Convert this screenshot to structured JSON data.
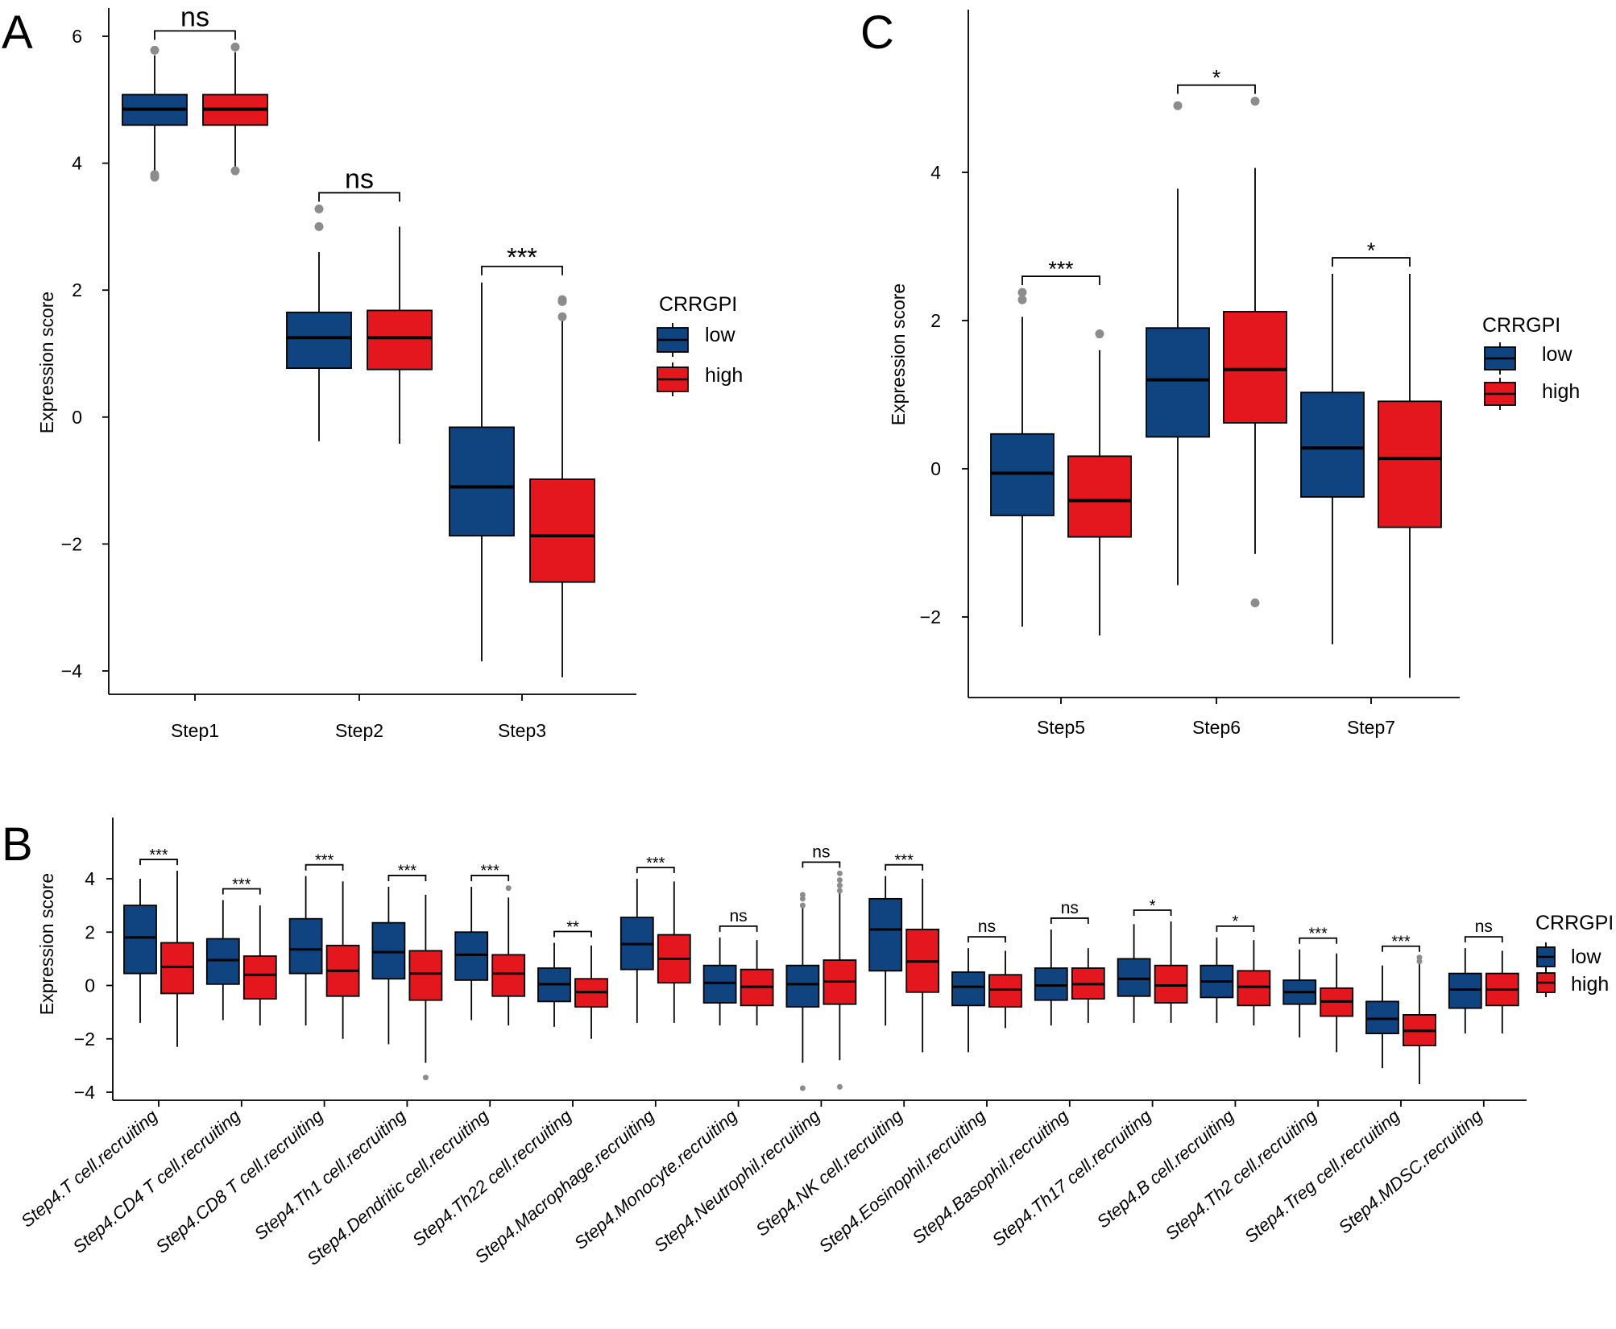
{
  "colors": {
    "low": "#0f4480",
    "high": "#e3171d",
    "outlier": "#8c8c8c"
  },
  "legend_title": "CRRGPI",
  "legend_labels": [
    "low",
    "high"
  ],
  "y_title": "Expression score",
  "chart_data": [
    {
      "panel": "A",
      "type": "boxplot",
      "ylabel": "Expression score",
      "yticks": [
        "6",
        "4",
        "2",
        "0",
        "−2",
        "−4"
      ],
      "ytick_values": [
        6,
        4,
        2,
        0,
        -2,
        -4
      ],
      "ylim": [
        -4.6,
        6.6
      ],
      "legend": {
        "title": "CRRGPI",
        "labels": [
          "low",
          "high"
        ]
      },
      "categories": [
        "Step1",
        "Step2",
        "Step3"
      ],
      "groups": [
        {
          "low": {
            "whisker_low": 3.85,
            "q1": 4.6,
            "median": 4.85,
            "q3": 5.08,
            "whisker_high": 5.7,
            "outliers": [
              5.78,
              3.82,
              3.78
            ]
          },
          "high": {
            "whisker_low": 3.95,
            "q1": 4.6,
            "median": 4.85,
            "q3": 5.08,
            "whisker_high": 5.75,
            "outliers": [
              5.83,
              3.88
            ]
          },
          "sig": "ns"
        },
        {
          "low": {
            "whisker_low": -0.38,
            "q1": 0.77,
            "median": 1.25,
            "q3": 1.65,
            "whisker_high": 2.6,
            "outliers": [
              3.28,
              3.0
            ]
          },
          "high": {
            "whisker_low": -0.42,
            "q1": 0.75,
            "median": 1.25,
            "q3": 1.68,
            "whisker_high": 3.0,
            "outliers": []
          },
          "sig": "ns"
        },
        {
          "low": {
            "whisker_low": -3.85,
            "q1": -1.87,
            "median": -1.1,
            "q3": -0.16,
            "whisker_high": 2.12,
            "outliers": []
          },
          "high": {
            "whisker_low": -4.1,
            "q1": -2.6,
            "median": -1.87,
            "q3": -0.98,
            "whisker_high": 1.55,
            "outliers": [
              1.85,
              1.82,
              1.58
            ]
          },
          "sig": "***"
        }
      ]
    },
    {
      "panel": "C",
      "type": "boxplot",
      "ylabel": "Expression score",
      "yticks": [
        "4",
        "2",
        "0",
        "−2"
      ],
      "ytick_values": [
        4,
        2,
        0,
        -2
      ],
      "ylim": [
        -3.1,
        5.9
      ],
      "legend": {
        "title": "CRRGPI",
        "labels": [
          "low",
          "high"
        ]
      },
      "categories": [
        "Step5",
        "Step6",
        "Step7"
      ],
      "groups": [
        {
          "low": {
            "whisker_low": -2.13,
            "q1": -0.63,
            "median": -0.06,
            "q3": 0.47,
            "whisker_high": 2.05,
            "outliers": [
              2.38,
              2.28
            ]
          },
          "high": {
            "whisker_low": -2.25,
            "q1": -0.92,
            "median": -0.43,
            "q3": 0.17,
            "whisker_high": 1.6,
            "outliers": [
              1.82
            ]
          },
          "sig": "***"
        },
        {
          "low": {
            "whisker_low": -1.57,
            "q1": 0.43,
            "median": 1.2,
            "q3": 1.9,
            "whisker_high": 3.78,
            "outliers": [
              4.9
            ]
          },
          "high": {
            "whisker_low": -1.15,
            "q1": 0.62,
            "median": 1.34,
            "q3": 2.12,
            "whisker_high": 4.06,
            "outliers": [
              4.96,
              -1.81
            ]
          },
          "sig": "*"
        },
        {
          "low": {
            "whisker_low": -2.37,
            "q1": -0.38,
            "median": 0.28,
            "q3": 1.03,
            "whisker_high": 2.63,
            "outliers": []
          },
          "high": {
            "whisker_low": -2.82,
            "q1": -0.79,
            "median": 0.14,
            "q3": 0.91,
            "whisker_high": 2.63,
            "outliers": []
          },
          "sig": "*"
        }
      ]
    },
    {
      "panel": "B",
      "type": "boxplot",
      "ylabel": "Expression score",
      "yticks": [
        "4",
        "2",
        "0",
        "−2",
        "−4"
      ],
      "ytick_values": [
        4,
        2,
        0,
        -2,
        -4
      ],
      "ylim": [
        -4.3,
        5.7
      ],
      "legend": {
        "title": "CRRGPI",
        "labels": [
          "low",
          "high"
        ]
      },
      "categories": [
        "Step4.T cell.recruiting",
        "Step4.CD4 T cell.recruiting",
        "Step4.CD8 T cell.recruiting",
        "Step4.Th1 cell.recruiting",
        "Step4.Dendritic cell.recruiting",
        "Step4.Th22 cell.recruiting",
        "Step4.Macrophage.recruiting",
        "Step4.Monocyte.recruiting",
        "Step4.Neutrophil.recruiting",
        "Step4.NK cell.recruiting",
        "Step4.Eosinophil.recruiting",
        "Step4.Basophil.recruiting",
        "Step4.Th17 cell.recruiting",
        "Step4.B cell.recruiting",
        "Step4.Th2 cell.recruiting",
        "Step4.Treg cell.recruiting",
        "Step4.MDSC.recruiting"
      ],
      "groups": [
        {
          "low": {
            "whisker_low": -1.4,
            "q1": 0.45,
            "median": 1.8,
            "q3": 3.0,
            "whisker_high": 4.0,
            "outliers": []
          },
          "high": {
            "whisker_low": -2.3,
            "q1": -0.3,
            "median": 0.7,
            "q3": 1.6,
            "whisker_high": 4.3,
            "outliers": []
          },
          "sig": "***"
        },
        {
          "low": {
            "whisker_low": -1.3,
            "q1": 0.05,
            "median": 0.95,
            "q3": 1.75,
            "whisker_high": 3.2,
            "outliers": []
          },
          "high": {
            "whisker_low": -1.5,
            "q1": -0.5,
            "median": 0.4,
            "q3": 1.1,
            "whisker_high": 3.0,
            "outliers": []
          },
          "sig": "***"
        },
        {
          "low": {
            "whisker_low": -1.5,
            "q1": 0.45,
            "median": 1.35,
            "q3": 2.5,
            "whisker_high": 4.1,
            "outliers": []
          },
          "high": {
            "whisker_low": -2.0,
            "q1": -0.4,
            "median": 0.55,
            "q3": 1.5,
            "whisker_high": 3.9,
            "outliers": []
          },
          "sig": "***"
        },
        {
          "low": {
            "whisker_low": -2.2,
            "q1": 0.25,
            "median": 1.25,
            "q3": 2.35,
            "whisker_high": 3.7,
            "outliers": []
          },
          "high": {
            "whisker_low": -2.9,
            "q1": -0.55,
            "median": 0.45,
            "q3": 1.3,
            "whisker_high": 3.4,
            "outliers": [
              -3.45
            ]
          },
          "sig": "***"
        },
        {
          "low": {
            "whisker_low": -1.3,
            "q1": 0.2,
            "median": 1.15,
            "q3": 2.0,
            "whisker_high": 3.7,
            "outliers": []
          },
          "high": {
            "whisker_low": -1.5,
            "q1": -0.4,
            "median": 0.45,
            "q3": 1.15,
            "whisker_high": 3.3,
            "outliers": [
              3.65
            ]
          },
          "sig": "***"
        },
        {
          "low": {
            "whisker_low": -1.55,
            "q1": -0.6,
            "median": 0.05,
            "q3": 0.65,
            "whisker_high": 1.6,
            "outliers": []
          },
          "high": {
            "whisker_low": -2.0,
            "q1": -0.8,
            "median": -0.25,
            "q3": 0.25,
            "whisker_high": 1.5,
            "outliers": []
          },
          "sig": "**"
        },
        {
          "low": {
            "whisker_low": -1.4,
            "q1": 0.6,
            "median": 1.55,
            "q3": 2.55,
            "whisker_high": 4.0,
            "outliers": []
          },
          "high": {
            "whisker_low": -1.4,
            "q1": 0.1,
            "median": 1.0,
            "q3": 1.9,
            "whisker_high": 3.9,
            "outliers": []
          },
          "sig": "***"
        },
        {
          "low": {
            "whisker_low": -1.5,
            "q1": -0.65,
            "median": 0.1,
            "q3": 0.75,
            "whisker_high": 1.8,
            "outliers": []
          },
          "high": {
            "whisker_low": -1.5,
            "q1": -0.75,
            "median": -0.05,
            "q3": 0.6,
            "whisker_high": 1.7,
            "outliers": []
          },
          "sig": "ns"
        },
        {
          "low": {
            "whisker_low": -2.9,
            "q1": -0.8,
            "median": 0.05,
            "q3": 0.75,
            "whisker_high": 3.0,
            "outliers": [
              3.4,
              3.25,
              3.0,
              -3.85
            ]
          },
          "high": {
            "whisker_low": -2.8,
            "q1": -0.7,
            "median": 0.15,
            "q3": 0.95,
            "whisker_high": 3.5,
            "outliers": [
              4.2,
              3.95,
              3.75,
              3.55,
              -3.8
            ]
          },
          "sig": "ns"
        },
        {
          "low": {
            "whisker_low": -1.5,
            "q1": 0.55,
            "median": 2.1,
            "q3": 3.25,
            "whisker_high": 4.1,
            "outliers": []
          },
          "high": {
            "whisker_low": -2.5,
            "q1": -0.25,
            "median": 0.9,
            "q3": 2.1,
            "whisker_high": 4.0,
            "outliers": []
          },
          "sig": "***"
        },
        {
          "low": {
            "whisker_low": -2.5,
            "q1": -0.75,
            "median": -0.05,
            "q3": 0.5,
            "whisker_high": 1.4,
            "outliers": []
          },
          "high": {
            "whisker_low": -1.6,
            "q1": -0.8,
            "median": -0.15,
            "q3": 0.4,
            "whisker_high": 1.3,
            "outliers": []
          },
          "sig": "ns"
        },
        {
          "low": {
            "whisker_low": -1.5,
            "q1": -0.55,
            "median": 0.0,
            "q3": 0.65,
            "whisker_high": 2.1,
            "outliers": []
          },
          "high": {
            "whisker_low": -1.4,
            "q1": -0.5,
            "median": 0.05,
            "q3": 0.65,
            "whisker_high": 1.4,
            "outliers": []
          },
          "sig": "ns"
        },
        {
          "low": {
            "whisker_low": -1.4,
            "q1": -0.4,
            "median": 0.25,
            "q3": 1.0,
            "whisker_high": 2.3,
            "outliers": []
          },
          "high": {
            "whisker_low": -1.4,
            "q1": -0.65,
            "median": 0.0,
            "q3": 0.75,
            "whisker_high": 2.4,
            "outliers": []
          },
          "sig": "*"
        },
        {
          "low": {
            "whisker_low": -1.4,
            "q1": -0.45,
            "median": 0.15,
            "q3": 0.75,
            "whisker_high": 1.8,
            "outliers": []
          },
          "high": {
            "whisker_low": -1.5,
            "q1": -0.75,
            "median": -0.05,
            "q3": 0.55,
            "whisker_high": 1.7,
            "outliers": []
          },
          "sig": "*"
        },
        {
          "low": {
            "whisker_low": -1.95,
            "q1": -0.7,
            "median": -0.25,
            "q3": 0.2,
            "whisker_high": 1.35,
            "outliers": []
          },
          "high": {
            "whisker_low": -2.5,
            "q1": -1.15,
            "median": -0.6,
            "q3": -0.1,
            "whisker_high": 1.2,
            "outliers": []
          },
          "sig": "***"
        },
        {
          "low": {
            "whisker_low": -3.1,
            "q1": -1.8,
            "median": -1.25,
            "q3": -0.6,
            "whisker_high": 0.75,
            "outliers": []
          },
          "high": {
            "whisker_low": -3.7,
            "q1": -2.25,
            "median": -1.7,
            "q3": -1.1,
            "whisker_high": 0.8,
            "outliers": [
              1.05,
              0.9
            ]
          },
          "sig": "***"
        },
        {
          "low": {
            "whisker_low": -1.8,
            "q1": -0.85,
            "median": -0.15,
            "q3": 0.45,
            "whisker_high": 1.4,
            "outliers": []
          },
          "high": {
            "whisker_low": -1.8,
            "q1": -0.75,
            "median": -0.15,
            "q3": 0.45,
            "whisker_high": 1.3,
            "outliers": []
          },
          "sig": "ns"
        }
      ]
    }
  ]
}
